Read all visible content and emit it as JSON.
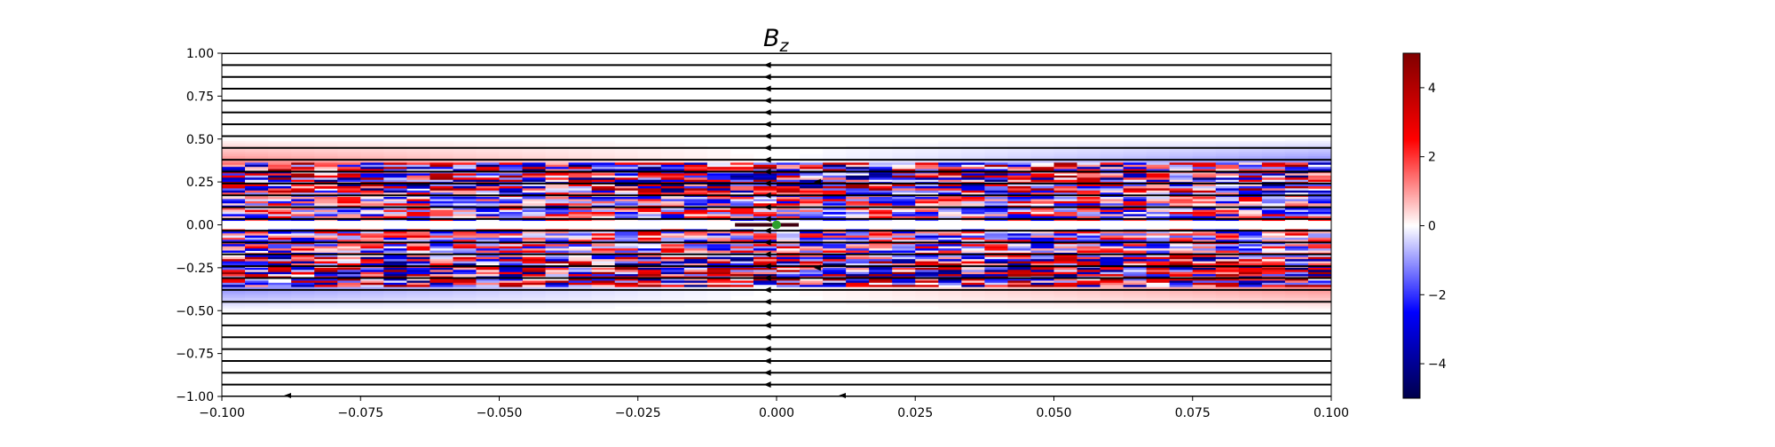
{
  "chart_data": {
    "type": "heatmap",
    "title": "B",
    "title_subscript": "z",
    "xlabel": "",
    "ylabel": "",
    "xlim": [
      -0.1,
      0.1
    ],
    "ylim": [
      -1.0,
      1.0
    ],
    "x_ticks": [
      -0.1,
      -0.075,
      -0.05,
      -0.025,
      0.0,
      0.025,
      0.05,
      0.075,
      0.1
    ],
    "x_tick_labels": [
      "−0.100",
      "−0.075",
      "−0.050",
      "−0.025",
      "0.000",
      "0.025",
      "0.050",
      "0.075",
      "0.100"
    ],
    "y_ticks": [
      1.0,
      0.75,
      0.5,
      0.25,
      0.0,
      -0.25,
      -0.5,
      -0.75,
      -1.0
    ],
    "y_tick_labels": [
      "1.00",
      "0.75",
      "0.50",
      "0.25",
      "0.00",
      "−0.25",
      "−0.50",
      "−0.75",
      "−1.00"
    ],
    "colormap": "seismic",
    "color_range": [
      -5,
      5
    ],
    "colorbar_ticks": [
      4,
      2,
      0,
      -2,
      -4
    ],
    "colorbar_tick_labels": [
      "4",
      "2",
      "0",
      "−2",
      "−4"
    ],
    "field_lines": {
      "color": "#000000",
      "direction": "negative-x",
      "y_positions": [
        1.0,
        0.931,
        0.862,
        0.793,
        0.724,
        0.655,
        0.586,
        0.517,
        0.448,
        0.379,
        0.31,
        0.241,
        0.172,
        0.103,
        0.034,
        -0.034,
        -0.103,
        -0.172,
        -0.241,
        -0.31,
        -0.379,
        -0.448,
        -0.517,
        -0.586,
        -0.655,
        -0.724,
        -0.793,
        -0.862,
        -0.931,
        -1.0
      ]
    },
    "marker": {
      "x": 0.0,
      "y": 0.0,
      "color": "#2ca02c"
    },
    "short_segment": {
      "x_range": [
        -0.0075,
        0.004
      ],
      "y": 0.0
    },
    "grid": false,
    "legend": "none"
  }
}
